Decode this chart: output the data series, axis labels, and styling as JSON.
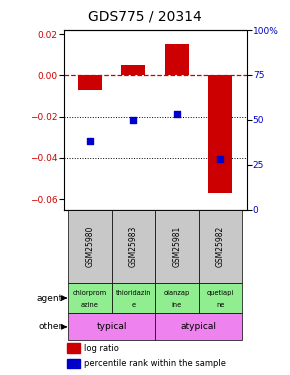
{
  "title": "GDS775 / 20314",
  "samples": [
    "GSM25980",
    "GSM25983",
    "GSM25981",
    "GSM25982"
  ],
  "log_ratios": [
    -0.007,
    0.005,
    0.015,
    -0.057
  ],
  "percentile_ranks": [
    38,
    50,
    53,
    28
  ],
  "ylim_left": [
    -0.065,
    0.022
  ],
  "ylim_right": [
    0,
    100
  ],
  "yticks_left": [
    -0.06,
    -0.04,
    -0.02,
    0.0,
    0.02
  ],
  "yticks_right": [
    0,
    25,
    50,
    75,
    100
  ],
  "bar_color": "#cc0000",
  "dot_color": "#0000cc",
  "agent_labels_line1": [
    "chlorprom",
    "thioridazin",
    "olanzap",
    "quetiapi"
  ],
  "agent_labels_line2": [
    "azine",
    "e",
    "ine",
    "ne"
  ],
  "agent_bg": "#90ee90",
  "sample_bg": "#c8c8c8",
  "typical_color": "#ee82ee",
  "atypical_color": "#ee82ee",
  "zero_line_color": "#cc0000",
  "grid_color": "#000000",
  "title_fontsize": 10,
  "tick_fontsize": 6.5,
  "bar_width": 0.55
}
